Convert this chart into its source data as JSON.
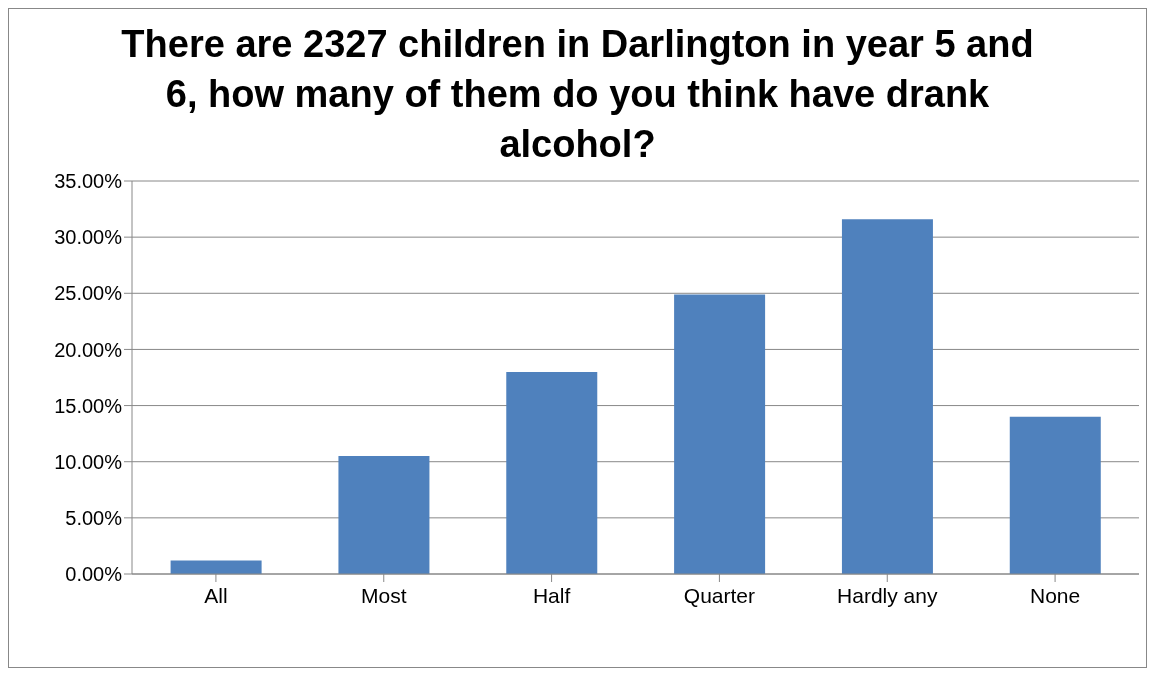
{
  "chart_data": {
    "type": "bar",
    "title": "There are 2327 children in Darlington in year 5 and 6, how many of them do you think have drank alcohol?",
    "categories": [
      "All",
      "Most",
      "Half",
      "Quarter",
      "Hardly any",
      "None"
    ],
    "values": [
      1.2,
      10.5,
      18.0,
      24.9,
      31.6,
      14.0
    ],
    "color": "#4f81bd",
    "ylim": [
      0,
      35
    ],
    "yticks": [
      {
        "value": 0,
        "label": "0.00%"
      },
      {
        "value": 5,
        "label": "5.00%"
      },
      {
        "value": 10,
        "label": "10.00%"
      },
      {
        "value": 15,
        "label": "15.00%"
      },
      {
        "value": 20,
        "label": "20.00%"
      },
      {
        "value": 25,
        "label": "25.00%"
      },
      {
        "value": 30,
        "label": "30.00%"
      },
      {
        "value": 35,
        "label": "35.00%"
      }
    ],
    "grid": "y"
  }
}
